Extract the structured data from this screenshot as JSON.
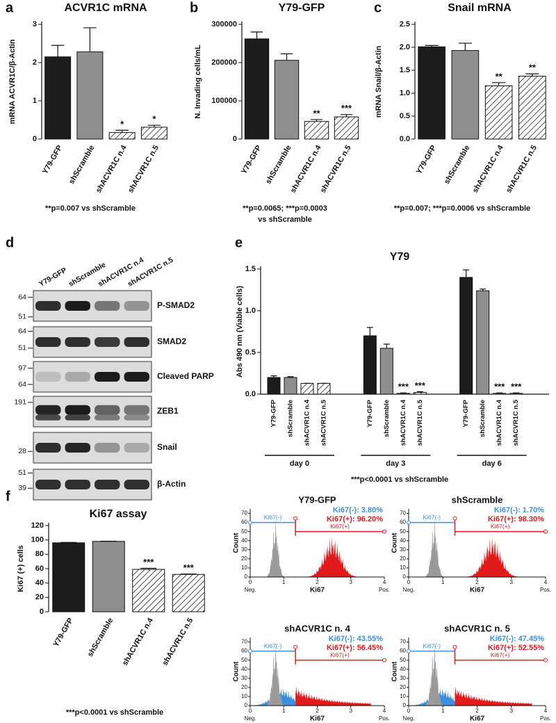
{
  "chart_data": [
    {
      "type": "bar",
      "panel": "a",
      "title": "ACVR1C mRNA",
      "y_label": "mRNA ACVR1C/β-Actin",
      "categories": [
        "Y79-GFP",
        "shScramble",
        "shACVR1C n.4",
        "shACVR1C n.5"
      ],
      "values": [
        2.15,
        2.28,
        0.17,
        0.31
      ],
      "errors": [
        0.3,
        0.63,
        0.06,
        0.05
      ],
      "significance": [
        null,
        null,
        "*",
        "*"
      ],
      "colors": [
        "#1c1c1c",
        "#8f8f8f",
        "#ffffff",
        "#ffffff"
      ],
      "hatch": [
        false,
        false,
        true,
        true
      ],
      "ylim": [
        0,
        3
      ],
      "yticks": [
        0,
        1,
        2,
        3
      ],
      "footnote": [
        "**p=0.007 vs shScramble"
      ]
    },
    {
      "type": "bar",
      "panel": "b",
      "title": "Y79-GFP",
      "y_label": "N. Invading cells/mL",
      "categories": [
        "Y79-GFP",
        "shScramble",
        "shACVR1C n.4",
        "shACVR1C n.5"
      ],
      "values": [
        262000,
        206000,
        46000,
        58000
      ],
      "errors": [
        18000,
        17000,
        5000,
        6000
      ],
      "significance": [
        null,
        null,
        "**",
        "***"
      ],
      "colors": [
        "#1c1c1c",
        "#8f8f8f",
        "#ffffff",
        "#ffffff"
      ],
      "hatch": [
        false,
        false,
        true,
        true
      ],
      "ylim": [
        0,
        300000
      ],
      "yticks": [
        0,
        100000,
        200000,
        300000
      ],
      "footnote": [
        "**p=0.0065; ***p=0.0003",
        "vs shScramble"
      ]
    },
    {
      "type": "bar",
      "panel": "c",
      "title": "Snail mRNA",
      "y_label": "mRNA Snail/β-Actin",
      "categories": [
        "Y79-GFP",
        "shScramble",
        "shACVR1C n.4",
        "shACVR1C n.5"
      ],
      "values": [
        2.01,
        1.93,
        1.16,
        1.37
      ],
      "errors": [
        0.03,
        0.16,
        0.07,
        0.05
      ],
      "significance": [
        null,
        null,
        "**",
        "**"
      ],
      "colors": [
        "#1c1c1c",
        "#8f8f8f",
        "#ffffff",
        "#ffffff"
      ],
      "hatch": [
        false,
        false,
        true,
        true
      ],
      "ylim": [
        0,
        2.5
      ],
      "yticks": [
        {
          "value": 0,
          "label": "0.0"
        },
        0.5,
        {
          "value": 1,
          "label": "1.0"
        },
        1.5,
        {
          "value": 2,
          "label": "2.0"
        },
        2.5
      ],
      "footnote": [
        "**p=0.007; ***p=0.0006 vs shScramble"
      ]
    },
    {
      "type": "blot",
      "panel": "d",
      "lanes": [
        "Y79-GFP",
        "shScramble",
        "shACVR1C n.4",
        "shACVR1C n.5"
      ],
      "rows": [
        {
          "label": "P-SMAD2",
          "markers": [
            64,
            51
          ]
        },
        {
          "label": "SMAD2",
          "markers": [
            64,
            51
          ]
        },
        {
          "label": "Cleaved PARP",
          "markers": [
            97,
            64
          ]
        },
        {
          "label": "ZEB1",
          "markers": [
            191
          ]
        },
        {
          "label": "Snail",
          "markers": [
            28
          ]
        },
        {
          "label": "β-Actin",
          "markers": [
            51,
            39
          ]
        }
      ]
    },
    {
      "type": "grouped_bar",
      "panel": "e",
      "title": "Y79",
      "y_label": "Abs 490 nm (Viable cells)",
      "groups": [
        "day 0",
        "day 3",
        "day 6"
      ],
      "series": [
        {
          "name": "Y79-GFP",
          "color": "#1c1c1c",
          "hatch": false,
          "values": [
            0.2,
            0.7,
            1.4
          ],
          "errors": [
            0.02,
            0.1,
            0.09
          ],
          "significance": [
            null,
            null,
            null
          ]
        },
        {
          "name": "shScramble",
          "color": "#8f8f8f",
          "hatch": false,
          "values": [
            0.2,
            0.55,
            1.24
          ],
          "errors": [
            0.01,
            0.05,
            0.02
          ],
          "significance": [
            null,
            null,
            null
          ]
        },
        {
          "name": "shACVR1C n.4",
          "color": "#ffffff",
          "hatch": true,
          "values": [
            0.13,
            0.01,
            0.01
          ],
          "errors": [
            0,
            0.005,
            0.005
          ],
          "significance": [
            null,
            "***",
            "***"
          ]
        },
        {
          "name": "shACVR1C n.5",
          "color": "#ffffff",
          "hatch": true,
          "values": [
            0.13,
            0.02,
            0.01
          ],
          "errors": [
            0,
            0.01,
            0.005
          ],
          "significance": [
            null,
            "***",
            "***"
          ]
        }
      ],
      "ylim": [
        0,
        1.5
      ],
      "yticks": [
        {
          "value": 0,
          "label": "0.0"
        },
        0.5,
        {
          "value": 1,
          "label": "1.0"
        },
        1.5
      ],
      "footnote": [
        "***p<0.0001 vs shScramble"
      ]
    },
    {
      "type": "bar",
      "panel": "f",
      "title": "Ki67 assay",
      "y_label": "Ki67 (+) cells",
      "categories": [
        "Y79-GFP",
        "shScramble",
        "shACVR1C n.4",
        "shACVR1C n.5"
      ],
      "values": [
        96,
        98,
        59,
        52
      ],
      "errors": [
        0.5,
        0.2,
        1.5,
        0.5
      ],
      "significance": [
        null,
        null,
        "***",
        "***"
      ],
      "colors": [
        "#1c1c1c",
        "#8f8f8f",
        "#ffffff",
        "#ffffff"
      ],
      "hatch": [
        false,
        false,
        true,
        true
      ],
      "ylim": [
        0,
        120
      ],
      "yticks": [
        0,
        20,
        40,
        60,
        80,
        100,
        120
      ],
      "footnote": [
        "***p<0.0001 vs shScramble"
      ]
    },
    {
      "type": "histogram",
      "title": "Y79-GFP",
      "stats": [
        {
          "value": 3.8,
          "label": "Ki67(-): 3.80%",
          "color": "#3b8fe0"
        },
        {
          "value": 96.2,
          "label": "Ki67(+): 96.20%",
          "color": "#e31a1c"
        }
      ],
      "gates": [
        "Ki67(-)",
        "Ki67(+)"
      ],
      "x_label": "Ki67",
      "y_label": "Count",
      "x_ends": [
        "Neg.",
        "Pos."
      ],
      "xlim": [
        0,
        4
      ],
      "xticks": [
        0,
        1,
        2,
        3,
        4
      ],
      "ylim": [
        0,
        75
      ],
      "yticks": [
        0,
        10,
        20,
        30,
        40,
        50,
        60,
        70
      ]
    },
    {
      "type": "histogram",
      "title": "shScramble",
      "stats": [
        {
          "value": 1.7,
          "label": "Ki67(-): 1.70%",
          "color": "#3b8fe0"
        },
        {
          "value": 98.3,
          "label": "Ki67(+): 98.30%",
          "color": "#e31a1c"
        }
      ],
      "gates": [
        "Ki67(-)",
        "Ki67(+)"
      ],
      "x_label": "Ki67",
      "y_label": "Count",
      "x_ends": [
        "Neg.",
        "Pos."
      ],
      "xlim": [
        0,
        4
      ],
      "xticks": [
        0,
        1,
        2,
        3,
        4
      ],
      "ylim": [
        0,
        75
      ],
      "yticks": [
        0,
        10,
        20,
        30,
        40,
        50,
        60,
        70
      ]
    },
    {
      "type": "histogram",
      "title": "shACVR1C n. 4",
      "stats": [
        {
          "value": 43.55,
          "label": "Ki67(-): 43.55%",
          "color": "#3b8fe0"
        },
        {
          "value": 56.45,
          "label": "Ki67(+): 56.45%",
          "color": "#e31a1c"
        }
      ],
      "gates": [
        "Ki67(-)",
        "Ki67(+)"
      ],
      "x_label": "Ki67",
      "y_label": "Count",
      "x_ends": [
        "Neg.",
        "Pos."
      ],
      "xlim": [
        0,
        4
      ],
      "xticks": [
        0,
        1,
        2,
        3,
        4
      ],
      "ylim": [
        0,
        75
      ],
      "yticks": [
        0,
        10,
        20,
        30,
        40,
        50,
        60,
        70
      ]
    },
    {
      "type": "histogram",
      "title": "shACVR1C n. 5",
      "stats": [
        {
          "value": 47.45,
          "label": "Ki67(-): 47.45%",
          "color": "#3b8fe0"
        },
        {
          "value": 52.55,
          "label": "Ki67(+): 52.55%",
          "color": "#e31a1c"
        }
      ],
      "gates": [
        "Ki67(-)",
        "Ki67(+)"
      ],
      "x_label": "Ki67",
      "y_label": "Count",
      "x_ends": [
        "Neg.",
        "Pos."
      ],
      "xlim": [
        0,
        4
      ],
      "xticks": [
        0,
        1,
        2,
        3,
        4
      ],
      "ylim": [
        0,
        75
      ],
      "yticks": [
        0,
        10,
        20,
        30,
        40,
        50,
        60,
        70
      ]
    }
  ]
}
